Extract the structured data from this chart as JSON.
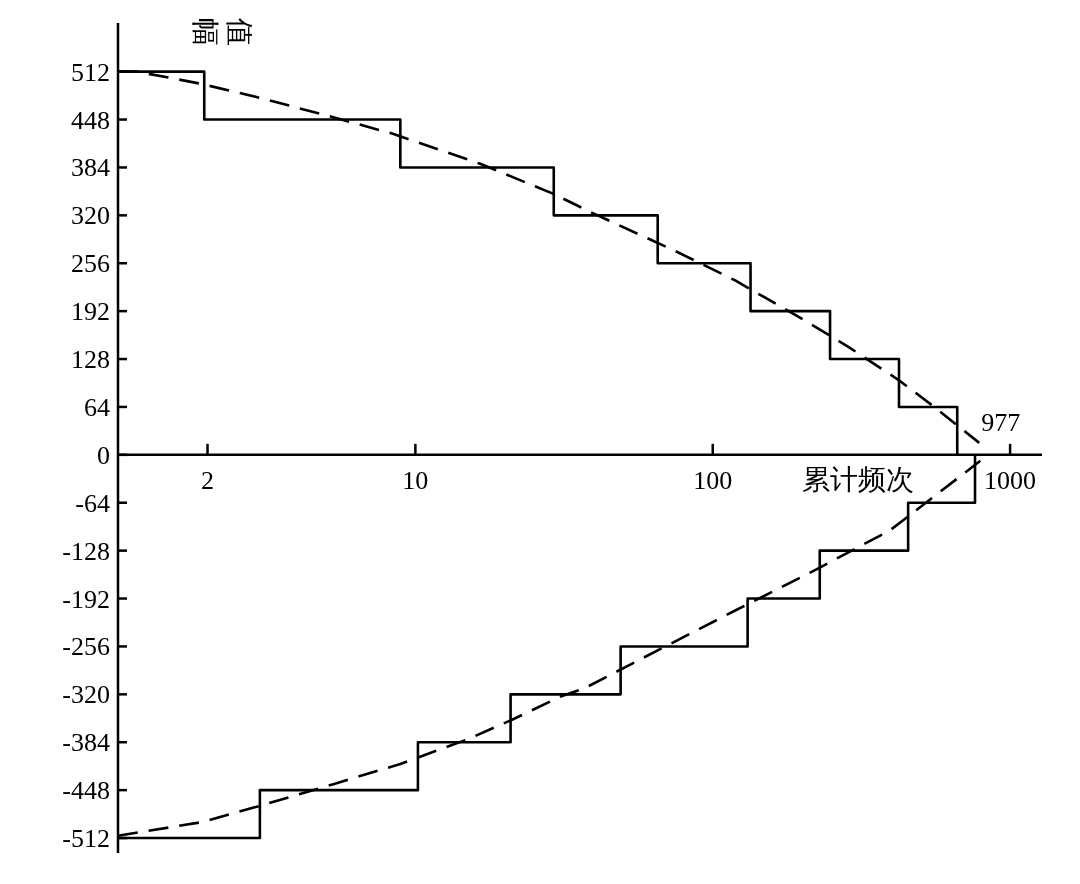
{
  "chart_data": {
    "type": "line",
    "xlabel": "累计频次",
    "ylabel": "幅值",
    "log": "x",
    "grid": false,
    "marker": "none",
    "xlim": [
      1,
      1280
    ],
    "ylim": [
      -532,
      577
    ],
    "xticks": [
      2,
      10,
      100,
      1000
    ],
    "yticks": [
      512,
      448,
      384,
      320,
      256,
      192,
      128,
      64,
      0,
      {
        "value": -64,
        "label": "-64"
      },
      {
        "value": -128,
        "label": "-128"
      },
      {
        "value": -192,
        "label": "-192"
      },
      {
        "value": -256,
        "label": "-256"
      },
      {
        "value": -320,
        "label": "-320"
      },
      {
        "value": -384,
        "label": "-384"
      },
      {
        "value": -448,
        "label": "-448"
      },
      {
        "value": -512,
        "label": "-512"
      }
    ],
    "series": [
      {
        "type": "step",
        "color": "#000000",
        "line_style": "solid",
        "x": [
          1,
          1.95,
          8.9,
          29.2,
          65.3,
          134,
          248,
          423,
          664
        ],
        "values": [
          512,
          448,
          384,
          320,
          256,
          192,
          128,
          64,
          0
        ]
      },
      {
        "type": "step",
        "color": "#000000",
        "line_style": "solid",
        "x": [
          1,
          3.0,
          10.2,
          20.9,
          49,
          131,
          229,
          454,
          762
        ],
        "values": [
          -512,
          -448,
          -384,
          -320,
          -256,
          -192,
          -128,
          -64,
          0
        ]
      },
      {
        "type": "line",
        "color": "#000000",
        "line_style": "dashed",
        "x": [
          1,
          1.16,
          1.89,
          3.0,
          5.3,
          8.4,
          16.5,
          29,
          39.5,
          76,
          119,
          205,
          284,
          425,
          560,
          787
        ],
        "values": [
          512,
          512,
          496,
          477,
          451,
          429,
          389,
          349,
          323,
          271,
          233,
          179,
          145,
          99,
          63,
          16
        ]
      },
      {
        "type": "line",
        "color": "#000000",
        "line_style": "dashed",
        "x": [
          1,
          1.9,
          3.0,
          5.3,
          8.9,
          15,
          21.4,
          30.8,
          37,
          67,
          119,
          216,
          394,
          541,
          794
        ],
        "values": [
          -509,
          -491,
          -469,
          -440,
          -413,
          -380,
          -353,
          -323,
          -312,
          -259,
          -208,
          -156,
          -101,
          -59,
          -8
        ]
      }
    ],
    "annotations": [
      "977"
    ]
  }
}
